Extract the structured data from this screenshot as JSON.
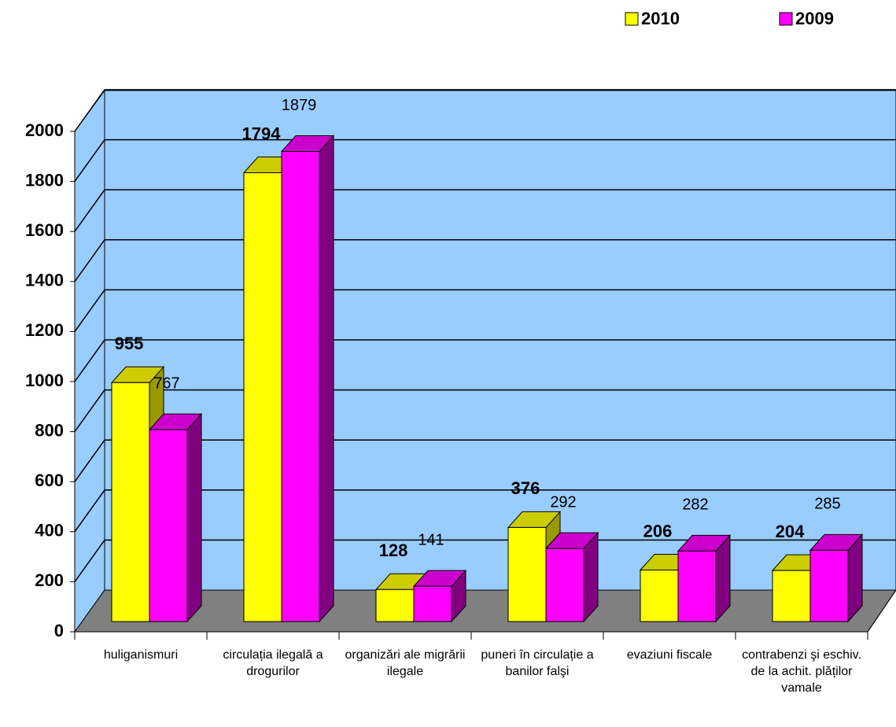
{
  "chart_data": {
    "type": "bar3d",
    "categories": [
      "huliganismuri",
      "circulația ilegală a drogurilor",
      "organizări ale migrării ilegale",
      "puneri în circulație a banilor falşi",
      "evaziuni fiscale",
      "contrabenzi şi eschiv. de la achit. plăților vamale"
    ],
    "series": [
      {
        "name": "2010",
        "color": "#ffff00",
        "values": [
          955,
          1794,
          128,
          376,
          206,
          204
        ]
      },
      {
        "name": "2009",
        "color": "#ff00ff",
        "values": [
          767,
          1879,
          141,
          292,
          282,
          285
        ]
      }
    ],
    "ylim": [
      0,
      2000
    ],
    "yticks": [
      0,
      200,
      400,
      600,
      800,
      1000,
      1200,
      1400,
      1600,
      1800,
      2000
    ],
    "grid": true,
    "legend": "top-right"
  }
}
